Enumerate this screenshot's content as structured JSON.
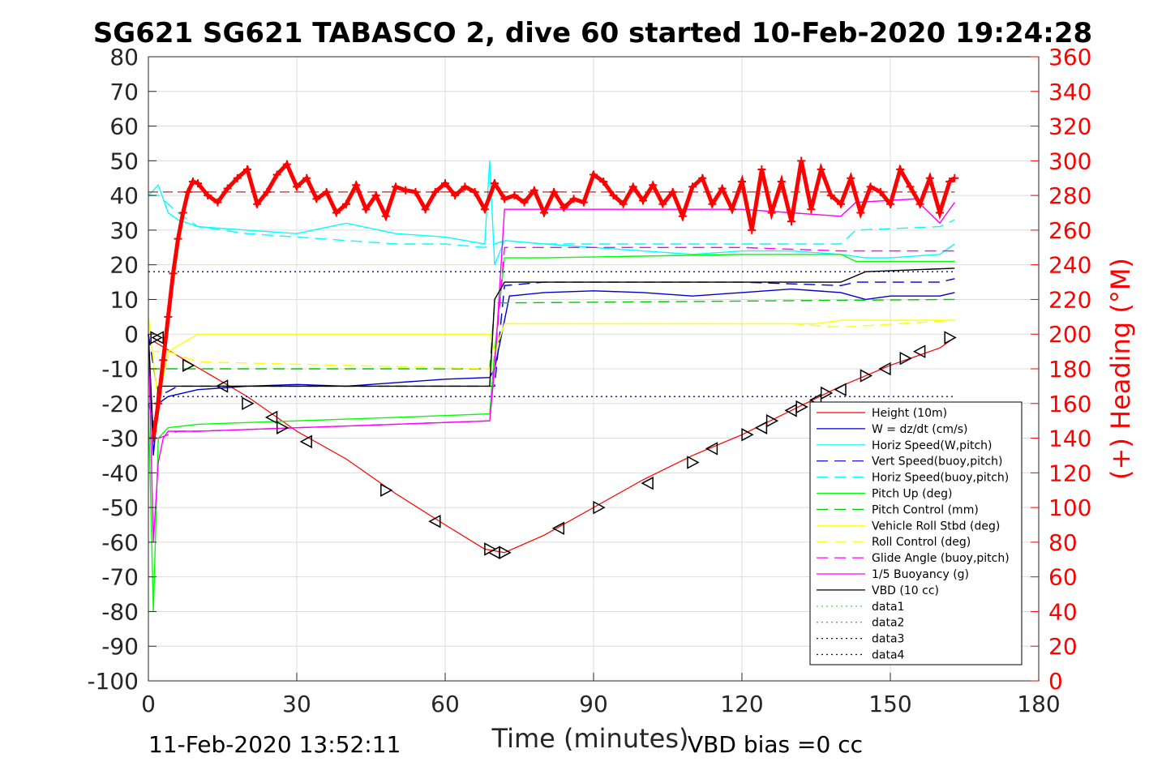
{
  "chart_data": {
    "type": "line",
    "title": "SG621 SG621 TABASCO 2, dive 60 started 10-Feb-2020 19:24:28",
    "xlabel": "Time (minutes)",
    "ylabel_left": "",
    "ylabel_right": "(+) Heading (°M)",
    "xlim": [
      0,
      180
    ],
    "ylim_left": [
      -100,
      80
    ],
    "ylim_right": [
      0,
      360
    ],
    "x_ticks": [
      "0",
      "30",
      "60",
      "90",
      "120",
      "150",
      "180"
    ],
    "y_ticks_left": [
      "80",
      "70",
      "60",
      "50",
      "40",
      "30",
      "20",
      "10",
      "0",
      "-10",
      "-20",
      "-30",
      "-40",
      "-50",
      "-60",
      "-70",
      "-80",
      "-90",
      "-100"
    ],
    "y_ticks_right": [
      "360",
      "340",
      "320",
      "300",
      "280",
      "260",
      "240",
      "220",
      "200",
      "180",
      "160",
      "140",
      "120",
      "100",
      "80",
      "60",
      "40",
      "20",
      "0"
    ],
    "grid": true,
    "legend_position": "bottom-right",
    "footer_left": "11-Feb-2020 13:52:11",
    "footer_right": "VBD bias =0 cc",
    "series": [
      {
        "name": "Height (10m)",
        "color": "#ff0000",
        "style": "solid",
        "x": [
          1,
          8,
          20,
          30,
          40,
          50,
          60,
          68,
          72,
          80,
          90,
          100,
          110,
          120,
          130,
          140,
          150,
          160,
          163
        ],
        "y": [
          -2,
          -8,
          -18,
          -28,
          -36,
          -46,
          -55,
          -62,
          -63,
          -58,
          -50,
          -42,
          -35,
          -29,
          -22,
          -15,
          -9,
          -4,
          -1
        ]
      },
      {
        "name": "W = dz/dt (cm/s)",
        "color": "#0000cc",
        "style": "solid",
        "x": [
          0,
          1,
          2,
          4,
          10,
          20,
          30,
          40,
          50,
          60,
          69,
          70,
          73,
          80,
          90,
          100,
          110,
          120,
          130,
          140,
          145,
          150,
          160,
          163
        ],
        "y": [
          0,
          -35,
          -20,
          -18,
          -16,
          -15,
          -14.5,
          -15,
          -14,
          -13,
          -12.5,
          -10,
          11,
          12,
          12.5,
          12,
          11,
          12,
          13,
          12,
          10,
          11,
          11,
          12
        ]
      },
      {
        "name": "Horiz Speed(W,pitch)",
        "color": "#00ffff",
        "style": "solid",
        "x": [
          0,
          2,
          4,
          6,
          10,
          20,
          30,
          40,
          50,
          60,
          68,
          69,
          70,
          72,
          80,
          90,
          100,
          110,
          120,
          130,
          140,
          145,
          150,
          160,
          163
        ],
        "y": [
          40,
          43,
          35,
          33,
          31,
          30,
          29,
          32,
          29,
          28,
          26,
          50,
          20,
          27,
          26,
          25,
          24,
          23,
          24,
          24,
          23,
          22,
          22,
          23,
          26
        ]
      },
      {
        "name": "Vert Speed(buoy,pitch)",
        "color": "#0000cc",
        "style": "dashed",
        "x": [
          0,
          2,
          6,
          10,
          70,
          72,
          80,
          120,
          140,
          143,
          160,
          163
        ],
        "y": [
          0,
          -18,
          -15,
          -15,
          -15,
          14,
          15,
          15,
          14,
          15,
          15,
          16
        ]
      },
      {
        "name": "Horiz Speed(buoy,pitch)",
        "color": "#00ffff",
        "style": "dashed",
        "x": [
          0,
          2,
          6,
          10,
          20,
          30,
          40,
          50,
          60,
          68,
          72,
          80,
          120,
          140,
          143,
          160,
          163
        ],
        "y": [
          40,
          40,
          35,
          31,
          29,
          28,
          27,
          26,
          26,
          25,
          27,
          26,
          26,
          26,
          30,
          31,
          33
        ]
      },
      {
        "name": "Pitch Up (deg)",
        "color": "#00ff00",
        "style": "solid",
        "x": [
          0,
          1,
          2,
          4,
          10,
          30,
          50,
          69,
          70,
          72,
          80,
          120,
          140,
          143,
          160,
          163
        ],
        "y": [
          -20,
          -80,
          -30,
          -27,
          -26,
          -25,
          -24,
          -23,
          -5,
          22,
          22,
          23,
          23,
          21,
          21,
          21
        ]
      },
      {
        "name": "Pitch Control (mm)",
        "color": "#00cc00",
        "style": "dashed",
        "x": [
          0,
          2,
          10,
          69,
          70,
          72,
          163
        ],
        "y": [
          -10,
          -10,
          -10,
          -10,
          9,
          9,
          10
        ]
      },
      {
        "name": "Vehicle Roll Stbd (deg)",
        "color": "#ffff00",
        "style": "solid",
        "x": [
          0,
          2,
          4,
          10,
          20,
          30,
          40,
          60,
          69,
          70,
          72,
          90,
          120,
          135,
          140,
          163
        ],
        "y": [
          5,
          -20,
          -5,
          0,
          0,
          0,
          0,
          0,
          0,
          -5,
          3,
          3,
          3,
          3,
          4,
          4
        ]
      },
      {
        "name": "Roll Control (deg)",
        "color": "#ffff00",
        "style": "dashed",
        "x": [
          0,
          4,
          10,
          69,
          72,
          90,
          120,
          130,
          140,
          163
        ],
        "y": [
          -5,
          -5,
          -8,
          -10,
          3,
          3,
          3,
          3,
          2,
          4
        ]
      },
      {
        "name": "Glide Angle (buoy,pitch)",
        "color": "#ff00ff",
        "style": "dashed",
        "x": [
          0,
          2,
          6,
          10,
          30,
          50,
          69,
          72,
          80,
          120,
          140,
          163
        ],
        "y": [
          -20,
          -30,
          -28,
          -28,
          -27,
          -26,
          -25,
          25,
          25,
          25,
          24,
          24
        ]
      },
      {
        "name": "1/5 Buoyancy (g)",
        "color": "#ff00ff",
        "style": "solid",
        "x": [
          0,
          1,
          2,
          3,
          4,
          10,
          30,
          50,
          69,
          70,
          72,
          80,
          100,
          120,
          130,
          140,
          143,
          155,
          160,
          163
        ],
        "y": [
          0,
          -60,
          -37,
          -30,
          -28,
          -28,
          -27,
          -26,
          -25,
          -10,
          36,
          36,
          36,
          36,
          35,
          34,
          38,
          39,
          32,
          38
        ]
      },
      {
        "name": "VBD (10 cc)",
        "color": "#000000",
        "style": "solid",
        "x": [
          0,
          1,
          2,
          4,
          69,
          70,
          72,
          140,
          145,
          163
        ],
        "y": [
          0,
          -30,
          -15,
          -15,
          -15,
          10,
          15,
          15,
          18,
          19
        ]
      },
      {
        "name": "data1",
        "color": "#00ff00",
        "style": "dotted",
        "x": [],
        "y": []
      },
      {
        "name": "data2",
        "color": "#00cc00",
        "style": "dotted",
        "x": [],
        "y": []
      },
      {
        "name": "data3",
        "color": "#000099",
        "style": "dotted",
        "x": [
          0,
          163
        ],
        "y": [
          18,
          18
        ]
      },
      {
        "name": "data4",
        "color": "#0000cc",
        "style": "dotted",
        "x": [
          0,
          163
        ],
        "y": [
          -18,
          -18
        ]
      }
    ],
    "heading_series": {
      "axis": "right",
      "color": "#ff0000",
      "marker": "+",
      "reference_heading": 282,
      "x": [
        1,
        2,
        3,
        4,
        5,
        6,
        7,
        8,
        9,
        10,
        12,
        14,
        16,
        18,
        20,
        22,
        24,
        26,
        28,
        30,
        32,
        34,
        36,
        38,
        40,
        42,
        44,
        46,
        48,
        50,
        52,
        54,
        56,
        58,
        60,
        62,
        64,
        66,
        68,
        70,
        72,
        74,
        76,
        78,
        80,
        82,
        84,
        86,
        88,
        90,
        92,
        94,
        96,
        98,
        100,
        102,
        104,
        106,
        108,
        110,
        112,
        114,
        116,
        118,
        120,
        122,
        124,
        126,
        128,
        130,
        132,
        134,
        136,
        138,
        140,
        142,
        144,
        146,
        148,
        150,
        152,
        154,
        156,
        158,
        160,
        162,
        163
      ],
      "y": [
        140,
        160,
        185,
        210,
        235,
        255,
        270,
        282,
        288,
        287,
        280,
        276,
        284,
        290,
        295,
        275,
        282,
        292,
        298,
        285,
        290,
        278,
        282,
        270,
        275,
        286,
        272,
        280,
        268,
        285,
        283,
        282,
        272,
        282,
        287,
        280,
        285,
        282,
        272,
        287,
        278,
        280,
        276,
        283,
        270,
        282,
        273,
        278,
        276,
        292,
        288,
        280,
        275,
        285,
        277,
        286,
        275,
        282,
        268,
        285,
        290,
        275,
        284,
        272,
        288,
        260,
        295,
        270,
        288,
        265,
        300,
        272,
        295,
        280,
        275,
        290,
        270,
        285,
        282,
        275,
        295,
        285,
        275,
        290,
        270,
        288,
        290
      ]
    },
    "depth_markers": {
      "x": [
        1.5,
        2,
        8,
        15,
        20,
        25,
        27,
        32,
        48,
        58,
        69,
        70,
        72,
        83,
        91,
        101,
        110,
        114,
        121,
        124,
        126,
        130,
        132,
        135,
        137,
        140,
        145,
        149,
        153,
        156,
        162
      ],
      "y": [
        -1,
        -1,
        -9,
        -15,
        -20,
        -24,
        -27,
        -31,
        -45,
        -54,
        -62,
        -63,
        -63,
        -56,
        -50,
        -43,
        -37,
        -33,
        -29,
        -27,
        -25,
        -22,
        -21,
        -19,
        -17,
        -16,
        -12,
        -10,
        -7,
        -5,
        -1
      ]
    }
  }
}
